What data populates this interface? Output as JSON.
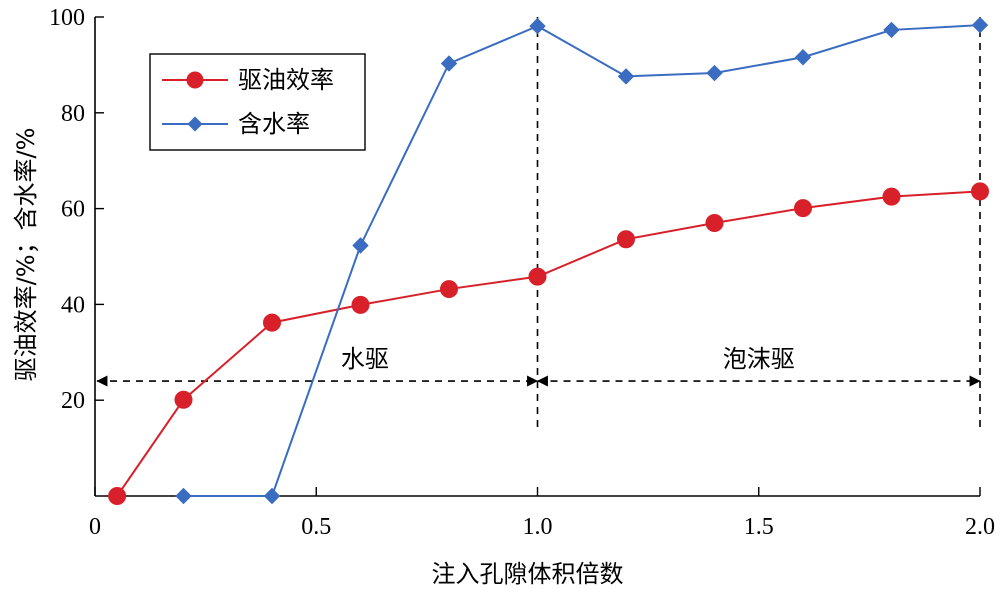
{
  "chart_data": {
    "type": "line",
    "xlabel": "注入孔隙体积倍数",
    "ylabel": "驱油效率/%；含水率/%",
    "xlim": [
      0,
      2.0
    ],
    "ylim": [
      0,
      100
    ],
    "x_ticks": [
      0,
      0.5,
      1.0,
      1.5,
      2.0
    ],
    "x_tick_labels": [
      "0",
      "0.5",
      "1.0",
      "1.5",
      "2.0"
    ],
    "y_ticks": [
      20,
      40,
      60,
      80,
      100
    ],
    "y_tick_labels": [
      "20",
      "40",
      "60",
      "80",
      "100"
    ],
    "legend_position": "top-left",
    "series": [
      {
        "name": "驱油效率",
        "color": "#d8202a",
        "marker": "circle",
        "x": [
          0.05,
          0.2,
          0.4,
          0.6,
          0.8,
          1.0,
          1.2,
          1.4,
          1.6,
          1.8,
          2.0
        ],
        "values": [
          0,
          20.1,
          36.2,
          39.9,
          43.2,
          45.8,
          53.6,
          57.0,
          60.1,
          62.5,
          63.6
        ]
      },
      {
        "name": "含水率",
        "color": "#3a6cc1",
        "marker": "diamond",
        "x": [
          0.2,
          0.4,
          0.6,
          0.8,
          1.0,
          1.2,
          1.4,
          1.6,
          1.8,
          2.0
        ],
        "values": [
          0,
          0,
          52.3,
          90.3,
          98.1,
          87.6,
          88.3,
          91.6,
          97.3,
          98.3
        ]
      }
    ],
    "annotations": [
      {
        "text": "水驱",
        "x_range": [
          0,
          1.0
        ],
        "y": 24
      },
      {
        "text": "泡沫驱",
        "x_range": [
          1.0,
          2.0
        ],
        "y": 24
      }
    ],
    "dividers_x": [
      1.0,
      2.0
    ]
  }
}
